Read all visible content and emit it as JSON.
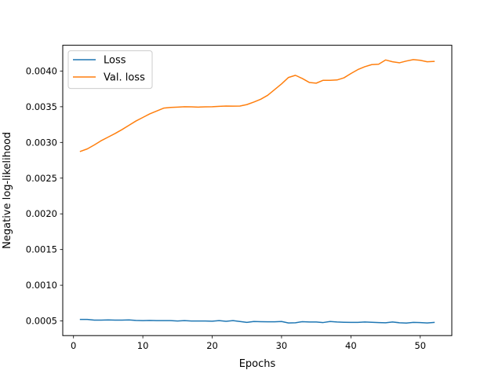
{
  "chart_data": {
    "type": "line",
    "title": "",
    "xlabel": "Epochs",
    "ylabel": "Negative log-likelihood",
    "xlim": [
      -1.55,
      54.55
    ],
    "ylim": [
      0.000295,
      0.004361
    ],
    "xticks": [
      0,
      10,
      20,
      30,
      40,
      50
    ],
    "xtick_labels": [
      "0",
      "10",
      "20",
      "30",
      "40",
      "50"
    ],
    "yticks": [
      0.0005,
      0.001,
      0.0015,
      0.002,
      0.0025,
      0.003,
      0.0035,
      0.004
    ],
    "ytick_labels": [
      "0.0005",
      "0.0010",
      "0.0015",
      "0.0020",
      "0.0025",
      "0.0030",
      "0.0035",
      "0.0040"
    ],
    "grid": false,
    "legend_position": "top-left",
    "x": [
      1,
      2,
      3,
      4,
      5,
      6,
      7,
      8,
      9,
      10,
      11,
      12,
      13,
      14,
      15,
      16,
      17,
      18,
      19,
      20,
      21,
      22,
      23,
      24,
      25,
      26,
      27,
      28,
      29,
      30,
      31,
      32,
      33,
      34,
      35,
      36,
      37,
      38,
      39,
      40,
      41,
      42,
      43,
      44,
      45,
      46,
      47,
      48,
      49,
      50,
      51,
      52
    ],
    "series": [
      {
        "name": "Loss",
        "color": "#1f77b4",
        "values": [
          0.000522,
          0.000522,
          0.000512,
          0.000512,
          0.000515,
          0.000512,
          0.000512,
          0.000515,
          0.000508,
          0.000505,
          0.000508,
          0.000505,
          0.000505,
          0.000505,
          0.0005,
          0.000505,
          0.0005,
          0.0005,
          0.0005,
          0.000497,
          0.000505,
          0.000495,
          0.000505,
          0.000492,
          0.00048,
          0.000492,
          0.00049,
          0.000488,
          0.000488,
          0.000492,
          0.000472,
          0.000475,
          0.00049,
          0.000485,
          0.000485,
          0.000478,
          0.000492,
          0.000485,
          0.000482,
          0.00048,
          0.00048,
          0.000485,
          0.000482,
          0.000478,
          0.000475,
          0.000485,
          0.000475,
          0.00047,
          0.00048,
          0.000478,
          0.000472,
          0.00048
        ]
      },
      {
        "name": "Val. loss",
        "color": "#ff7f0e",
        "values": [
          0.002875,
          0.00291,
          0.002965,
          0.003025,
          0.003075,
          0.003125,
          0.00318,
          0.00324,
          0.0033,
          0.00335,
          0.0034,
          0.00344,
          0.00348,
          0.00349,
          0.003495,
          0.0035,
          0.003498,
          0.003495,
          0.003498,
          0.0035,
          0.003505,
          0.00351,
          0.003508,
          0.00351,
          0.00353,
          0.003565,
          0.003605,
          0.00366,
          0.00374,
          0.00382,
          0.00391,
          0.00394,
          0.003895,
          0.00384,
          0.00383,
          0.00387,
          0.00387,
          0.003875,
          0.003905,
          0.003965,
          0.00402,
          0.00406,
          0.00409,
          0.004095,
          0.004155,
          0.00413,
          0.004115,
          0.00414,
          0.00416,
          0.00415,
          0.00413,
          0.004135
        ]
      }
    ]
  }
}
